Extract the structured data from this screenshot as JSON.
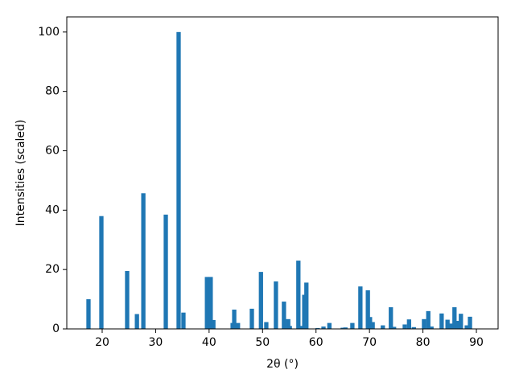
{
  "chart_data": {
    "type": "bar",
    "xlabel": "2θ (°)",
    "ylabel": "Intensities (scaled)",
    "color": "#1f77b4",
    "x": [
      17.44,
      19.85,
      24.67,
      26.5,
      27.7,
      31.9,
      34.3,
      35.2,
      39.6,
      40.3,
      40.8,
      44.4,
      44.7,
      45.4,
      48.0,
      49.7,
      50.7,
      52.5,
      54.0,
      54.8,
      55.1,
      56.7,
      57.2,
      57.8,
      58.2,
      60.3,
      61.4,
      62.5,
      65.0,
      65.5,
      66.8,
      68.3,
      69.7,
      70.1,
      70.6,
      72.5,
      74.0,
      74.6,
      76.6,
      77.4,
      78.3,
      80.2,
      81.0,
      81.6,
      83.5,
      84.6,
      85.2,
      85.9,
      86.5,
      87.1,
      88.2,
      88.8
    ],
    "values": [
      10,
      38,
      19.5,
      5,
      45.7,
      38.5,
      100,
      5.5,
      17.5,
      17.5,
      3,
      2,
      6.5,
      2,
      6.8,
      19.2,
      2.3,
      16,
      9.2,
      3.3,
      1,
      23,
      1,
      11.5,
      15.6,
      0.3,
      0.8,
      2,
      0.4,
      0.5,
      2,
      14.3,
      13,
      4,
      2.3,
      1.2,
      7.3,
      0.7,
      1.5,
      3.2,
      0.6,
      3.3,
      6,
      0.8,
      5.2,
      3.1,
      1.8,
      7.3,
      2.7,
      5.1,
      1.2,
      4.1
    ],
    "xlim": [
      13.38,
      94.06
    ],
    "ylim": [
      0,
      105.1
    ],
    "xticks": [
      20,
      30,
      40,
      50,
      60,
      70,
      80,
      90
    ],
    "yticks": [
      0,
      20,
      40,
      60,
      80,
      100
    ]
  }
}
